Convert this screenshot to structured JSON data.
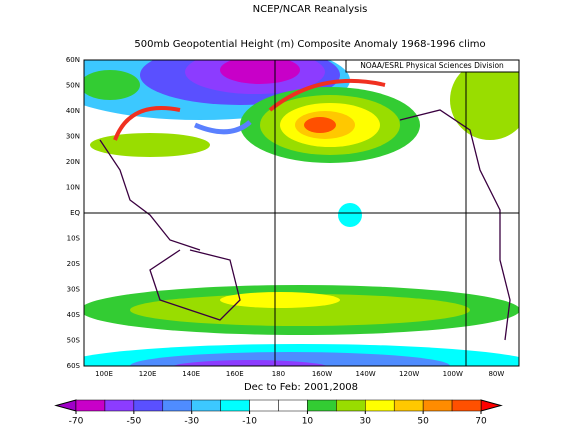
{
  "title": "NCEP/NCAR Reanalysis",
  "subtitle": "500mb Geopotential Height (m) Composite Anomaly 1968-1996 climo",
  "credit": "NOAA/ESRL Physical Sciences Division",
  "period": "Dec to Feb: 2001,2008",
  "lat_labels": [
    "60N",
    "50N",
    "40N",
    "30N",
    "20N",
    "10N",
    "EQ",
    "10S",
    "20S",
    "30S",
    "40S",
    "50S",
    "60S"
  ],
  "lon_labels": [
    "100E",
    "120E",
    "140E",
    "160E",
    "180",
    "160W",
    "140W",
    "120W",
    "100W",
    "80W"
  ],
  "colorbar": {
    "ticks": [
      -70,
      -50,
      -30,
      -10,
      10,
      30,
      50,
      70
    ],
    "colors": [
      "#a000c8",
      "#c800c8",
      "#8c3cff",
      "#5a50ff",
      "#4f8cff",
      "#3cc8ff",
      "#00ffff",
      "#ffffff",
      "#ffffff",
      "#33cc33",
      "#99dd00",
      "#ffff00",
      "#ffc800",
      "#ff8c00",
      "#ff5000",
      "#ff0000"
    ]
  }
}
